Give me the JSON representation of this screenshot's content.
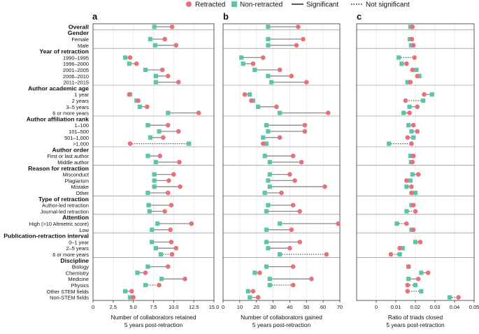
{
  "legend": {
    "retracted": "Retracted",
    "non_retracted": "Non-retracted",
    "significant": "Significant",
    "not_significant": "Not significant"
  },
  "colors": {
    "retracted": "#e8707a",
    "non_retracted": "#5cc5a5",
    "line": "#8a8a8a",
    "frame": "#333333"
  },
  "rows": [
    {
      "label": "Overall",
      "bold": true
    },
    {
      "label": "Gender",
      "bold": true,
      "header": true
    },
    {
      "label": "Female"
    },
    {
      "label": "Male"
    },
    {
      "label": "Year of retraction",
      "bold": true,
      "header": true
    },
    {
      "label": "1990–1995"
    },
    {
      "label": "1996–2000"
    },
    {
      "label": "2001–2005"
    },
    {
      "label": "2006–2010"
    },
    {
      "label": "2011–2015"
    },
    {
      "label": "Author academic age",
      "bold": true,
      "header": true
    },
    {
      "label": "1 year"
    },
    {
      "label": "2 years"
    },
    {
      "label": "3–5 years"
    },
    {
      "label": "6 or more years"
    },
    {
      "label": "Author affiliation rank",
      "bold": true,
      "header": true
    },
    {
      "label": "1–100"
    },
    {
      "label": "101–500"
    },
    {
      "label": "501–1,000"
    },
    {
      "label": ">1,000"
    },
    {
      "label": "Author order",
      "bold": true,
      "header": true
    },
    {
      "label": "First or last author"
    },
    {
      "label": "Middle author"
    },
    {
      "label": "Reason for retraction",
      "bold": true,
      "header": true
    },
    {
      "label": "Misconduct"
    },
    {
      "label": "Plagiarism"
    },
    {
      "label": "Mistake"
    },
    {
      "label": "Other"
    },
    {
      "label": "Type of retraction",
      "bold": true,
      "header": true
    },
    {
      "label": "Author-led retraction"
    },
    {
      "label": "Journal-led retraction"
    },
    {
      "label": "Attention",
      "bold": true,
      "header": true
    },
    {
      "label": "High (>10 Altmetric score)"
    },
    {
      "label": "Low"
    },
    {
      "label": "Publication-retraction interval",
      "bold": true,
      "header": true
    },
    {
      "label": "0–1 year"
    },
    {
      "label": "2–5 years"
    },
    {
      "label": "6 or more years"
    },
    {
      "label": "Discipline",
      "bold": true,
      "header": true
    },
    {
      "label": "Biology"
    },
    {
      "label": "Chemistry"
    },
    {
      "label": "Medicine"
    },
    {
      "label": "Physics"
    },
    {
      "label": "Other STEM fields"
    },
    {
      "label": "Non-STEM fields"
    }
  ],
  "chart_data": [
    {
      "panel": "a",
      "type": "dumbbell",
      "xlabel": "Number of collaborators retained\n5 years post-retraction",
      "xlim": [
        0,
        15
      ],
      "xticks": [
        0,
        2.5,
        5.0,
        7.5,
        10.0,
        12.5,
        15.0
      ],
      "xtick_labels": [
        "0",
        "2.5",
        "5.0",
        "7.5",
        "10.0",
        "12.5",
        "15.0"
      ],
      "points": [
        {
          "row": 0,
          "retracted": 9.8,
          "non_retracted": 7.6,
          "significant": true
        },
        {
          "row": 2,
          "retracted": 8.9,
          "non_retracted": 7.1,
          "significant": true
        },
        {
          "row": 3,
          "retracted": 10.3,
          "non_retracted": 7.7,
          "significant": true
        },
        {
          "row": 5,
          "retracted": 4.6,
          "non_retracted": 4.0,
          "significant": true
        },
        {
          "row": 6,
          "retracted": 5.4,
          "non_retracted": 4.5,
          "significant": true
        },
        {
          "row": 7,
          "retracted": 8.6,
          "non_retracted": 6.5,
          "significant": true
        },
        {
          "row": 8,
          "retracted": 9.3,
          "non_retracted": 7.8,
          "significant": true
        },
        {
          "row": 9,
          "retracted": 10.6,
          "non_retracted": 7.8,
          "significant": true
        },
        {
          "row": 11,
          "retracted": 4.5,
          "non_retracted": 4.6,
          "significant": true
        },
        {
          "row": 12,
          "retracted": 5.6,
          "non_retracted": 5.4,
          "significant": true
        },
        {
          "row": 13,
          "retracted": 6.7,
          "non_retracted": 5.8,
          "significant": true
        },
        {
          "row": 14,
          "retracted": 13.1,
          "non_retracted": 9.3,
          "significant": true
        },
        {
          "row": 16,
          "retracted": 9.3,
          "non_retracted": 6.8,
          "significant": true
        },
        {
          "row": 17,
          "retracted": 10.6,
          "non_retracted": 8.2,
          "significant": true
        },
        {
          "row": 18,
          "retracted": 8.7,
          "non_retracted": 7.1,
          "significant": true
        },
        {
          "row": 19,
          "retracted": 4.6,
          "non_retracted": 11.9,
          "significant": false
        },
        {
          "row": 21,
          "retracted": 8.3,
          "non_retracted": 6.8,
          "significant": true
        },
        {
          "row": 22,
          "retracted": 10.7,
          "non_retracted": 7.8,
          "significant": true
        },
        {
          "row": 24,
          "retracted": 10.0,
          "non_retracted": 7.6,
          "significant": true
        },
        {
          "row": 25,
          "retracted": 9.4,
          "non_retracted": 7.6,
          "significant": true
        },
        {
          "row": 26,
          "retracted": 10.8,
          "non_retracted": 7.6,
          "significant": true
        },
        {
          "row": 27,
          "retracted": 9.3,
          "non_retracted": 6.8,
          "significant": true
        },
        {
          "row": 29,
          "retracted": 9.7,
          "non_retracted": 6.9,
          "significant": true
        },
        {
          "row": 30,
          "retracted": 8.9,
          "non_retracted": 7.0,
          "significant": true
        },
        {
          "row": 32,
          "retracted": 12.2,
          "non_retracted": 8.0,
          "significant": true
        },
        {
          "row": 33,
          "retracted": 9.6,
          "non_retracted": 7.3,
          "significant": true
        },
        {
          "row": 35,
          "retracted": 9.7,
          "non_retracted": 7.3,
          "significant": true
        },
        {
          "row": 36,
          "retracted": 10.3,
          "non_retracted": 7.8,
          "significant": true
        },
        {
          "row": 37,
          "retracted": 9.8,
          "non_retracted": 8.4,
          "significant": false
        },
        {
          "row": 39,
          "retracted": 9.3,
          "non_retracted": 6.8,
          "significant": true
        },
        {
          "row": 40,
          "retracted": 6.5,
          "non_retracted": 5.5,
          "significant": true
        },
        {
          "row": 41,
          "retracted": 11.4,
          "non_retracted": 8.5,
          "significant": true
        },
        {
          "row": 42,
          "retracted": 8.2,
          "non_retracted": 6.5,
          "significant": false
        },
        {
          "row": 43,
          "retracted": 4.8,
          "non_retracted": 4.0,
          "significant": true
        },
        {
          "row": 44,
          "retracted": 5.0,
          "non_retracted": 4.6,
          "significant": true
        }
      ]
    },
    {
      "panel": "b",
      "type": "dumbbell",
      "xlabel": "Number of collaborators gained\n5 years post-retraction",
      "xlim": [
        0,
        70
      ],
      "xticks": [
        0,
        10,
        20,
        30,
        40,
        50,
        60,
        70
      ],
      "xtick_labels": [
        "0",
        "10",
        "20",
        "30",
        "40",
        "50",
        "60",
        "70"
      ],
      "points": [
        {
          "row": 0,
          "retracted": 45,
          "non_retracted": 27,
          "significant": true
        },
        {
          "row": 2,
          "retracted": 48,
          "non_retracted": 27,
          "significant": true
        },
        {
          "row": 3,
          "retracted": 44,
          "non_retracted": 27,
          "significant": true
        },
        {
          "row": 5,
          "retracted": 24,
          "non_retracted": 11,
          "significant": true
        },
        {
          "row": 6,
          "retracted": 18,
          "non_retracted": 12,
          "significant": true
        },
        {
          "row": 7,
          "retracted": 34,
          "non_retracted": 19,
          "significant": true
        },
        {
          "row": 8,
          "retracted": 41,
          "non_retracted": 27,
          "significant": true
        },
        {
          "row": 9,
          "retracted": 50,
          "non_retracted": 29,
          "significant": true
        },
        {
          "row": 11,
          "retracted": 13,
          "non_retracted": 16,
          "significant": true
        },
        {
          "row": 12,
          "retracted": 17,
          "non_retracted": 18,
          "significant": true
        },
        {
          "row": 13,
          "retracted": 32,
          "non_retracted": 21,
          "significant": true
        },
        {
          "row": 14,
          "retracted": 63,
          "non_retracted": 34,
          "significant": true
        },
        {
          "row": 16,
          "retracted": 49,
          "non_retracted": 26,
          "significant": true
        },
        {
          "row": 17,
          "retracted": 49,
          "non_retracted": 27,
          "significant": true
        },
        {
          "row": 18,
          "retracted": 34,
          "non_retracted": 24,
          "significant": true
        },
        {
          "row": 19,
          "retracted": 24,
          "non_retracted": 26,
          "significant": true
        },
        {
          "row": 21,
          "retracted": 42,
          "non_retracted": 25,
          "significant": true
        },
        {
          "row": 22,
          "retracted": 47,
          "non_retracted": 28,
          "significant": true
        },
        {
          "row": 24,
          "retracted": 40,
          "non_retracted": 28,
          "significant": true
        },
        {
          "row": 25,
          "retracted": 43,
          "non_retracted": 27,
          "significant": true
        },
        {
          "row": 26,
          "retracted": 61,
          "non_retracted": 28,
          "significant": true
        },
        {
          "row": 27,
          "retracted": 35,
          "non_retracted": 25,
          "significant": true
        },
        {
          "row": 29,
          "retracted": 42,
          "non_retracted": 27,
          "significant": true
        },
        {
          "row": 30,
          "retracted": 46,
          "non_retracted": 26,
          "significant": true
        },
        {
          "row": 32,
          "retracted": 69,
          "non_retracted": 34,
          "significant": true
        },
        {
          "row": 33,
          "retracted": 41,
          "non_retracted": 26,
          "significant": true
        },
        {
          "row": 35,
          "retracted": 46,
          "non_retracted": 26,
          "significant": true
        },
        {
          "row": 36,
          "retracted": 40,
          "non_retracted": 27,
          "significant": true
        },
        {
          "row": 37,
          "retracted": 62,
          "non_retracted": 34,
          "significant": false
        },
        {
          "row": 39,
          "retracted": 42,
          "non_retracted": 26,
          "significant": true
        },
        {
          "row": 40,
          "retracted": 22,
          "non_retracted": 19,
          "significant": true
        },
        {
          "row": 41,
          "retracted": 53,
          "non_retracted": 28,
          "significant": true
        },
        {
          "row": 42,
          "retracted": 42,
          "non_retracted": 28,
          "significant": false
        },
        {
          "row": 43,
          "retracted": 18,
          "non_retracted": 15,
          "significant": true
        },
        {
          "row": 44,
          "retracted": 21,
          "non_retracted": 16,
          "significant": true
        }
      ]
    },
    {
      "panel": "c",
      "type": "dumbbell",
      "xlabel": "Ratio of triads closed\n5 years post-retraction",
      "xlim": [
        -0.01,
        0.05
      ],
      "xticks": [
        0,
        0.01,
        0.02,
        0.03,
        0.04,
        0.05
      ],
      "xtick_labels": [
        "0",
        "0.01",
        "0.02",
        "0.03",
        "0.04",
        "0.05"
      ],
      "points": [
        {
          "row": 0,
          "retracted": 0.0185,
          "non_retracted": 0.0175,
          "significant": true
        },
        {
          "row": 2,
          "retracted": 0.0182,
          "non_retracted": 0.0172,
          "significant": true
        },
        {
          "row": 3,
          "retracted": 0.019,
          "non_retracted": 0.0178,
          "significant": true
        },
        {
          "row": 5,
          "retracted": 0.0195,
          "non_retracted": 0.0115,
          "significant": false
        },
        {
          "row": 6,
          "retracted": 0.0155,
          "non_retracted": 0.013,
          "significant": true
        },
        {
          "row": 7,
          "retracted": 0.0185,
          "non_retracted": 0.0205,
          "significant": true
        },
        {
          "row": 8,
          "retracted": 0.021,
          "non_retracted": 0.022,
          "significant": true
        },
        {
          "row": 9,
          "retracted": 0.0175,
          "non_retracted": 0.016,
          "significant": true
        },
        {
          "row": 11,
          "retracted": 0.0245,
          "non_retracted": 0.0285,
          "significant": true
        },
        {
          "row": 12,
          "retracted": 0.015,
          "non_retracted": 0.024,
          "significant": false
        },
        {
          "row": 13,
          "retracted": 0.021,
          "non_retracted": 0.017,
          "significant": true
        },
        {
          "row": 14,
          "retracted": 0.017,
          "non_retracted": 0.014,
          "significant": true
        },
        {
          "row": 16,
          "retracted": 0.019,
          "non_retracted": 0.0165,
          "significant": true
        },
        {
          "row": 17,
          "retracted": 0.021,
          "non_retracted": 0.018,
          "significant": true
        },
        {
          "row": 18,
          "retracted": 0.016,
          "non_retracted": 0.019,
          "significant": true
        },
        {
          "row": 19,
          "retracted": 0.018,
          "non_retracted": 0.0065,
          "significant": false
        },
        {
          "row": 21,
          "retracted": 0.019,
          "non_retracted": 0.0175,
          "significant": true
        },
        {
          "row": 22,
          "retracted": 0.0185,
          "non_retracted": 0.0178,
          "significant": true
        },
        {
          "row": 24,
          "retracted": 0.0215,
          "non_retracted": 0.0185,
          "significant": true
        },
        {
          "row": 25,
          "retracted": 0.0155,
          "non_retracted": 0.0175,
          "significant": true
        },
        {
          "row": 26,
          "retracted": 0.018,
          "non_retracted": 0.0155,
          "significant": true
        },
        {
          "row": 27,
          "retracted": 0.018,
          "non_retracted": 0.02,
          "significant": true
        },
        {
          "row": 29,
          "retracted": 0.019,
          "non_retracted": 0.018,
          "significant": true
        },
        {
          "row": 30,
          "retracted": 0.02,
          "non_retracted": 0.0155,
          "significant": false
        },
        {
          "row": 32,
          "retracted": 0.0155,
          "non_retracted": 0.0105,
          "significant": false
        },
        {
          "row": 33,
          "retracted": 0.019,
          "non_retracted": 0.018,
          "significant": true
        },
        {
          "row": 35,
          "retracted": 0.0225,
          "non_retracted": 0.02,
          "significant": true
        },
        {
          "row": 36,
          "retracted": 0.012,
          "non_retracted": 0.0135,
          "significant": true
        },
        {
          "row": 37,
          "retracted": 0.0075,
          "non_retracted": 0.012,
          "significant": false
        },
        {
          "row": 39,
          "retracted": 0.0165,
          "non_retracted": 0.0165,
          "significant": true
        },
        {
          "row": 40,
          "retracted": 0.0265,
          "non_retracted": 0.023,
          "significant": true
        },
        {
          "row": 41,
          "retracted": 0.0215,
          "non_retracted": 0.0165,
          "significant": true
        },
        {
          "row": 42,
          "retracted": 0.016,
          "non_retracted": 0.02,
          "significant": false
        },
        {
          "row": 43,
          "retracted": 0.016,
          "non_retracted": 0.023,
          "significant": false
        },
        {
          "row": 44,
          "retracted": 0.042,
          "non_retracted": 0.0375,
          "significant": false
        }
      ]
    }
  ]
}
